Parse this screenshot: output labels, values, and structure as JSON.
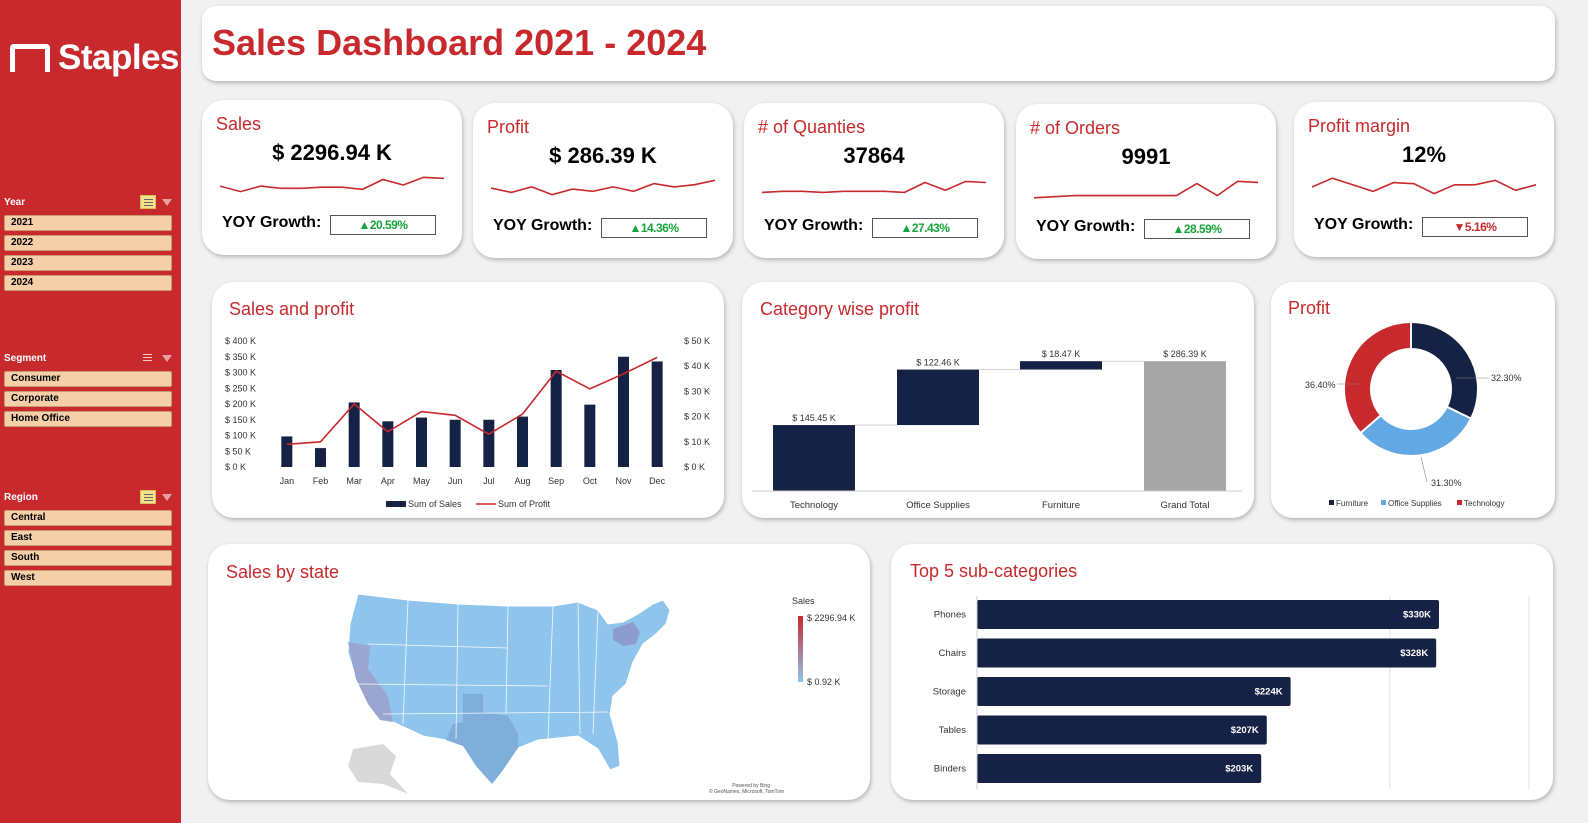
{
  "brand": {
    "name": "Staples"
  },
  "dashboard": {
    "title": "Sales Dashboard 2021 - 2024"
  },
  "slicers": {
    "year": {
      "label": "Year",
      "items": [
        "2021",
        "2022",
        "2023",
        "2024"
      ]
    },
    "segment": {
      "label": "Segment",
      "items": [
        "Consumer",
        "Corporate",
        "Home Office"
      ]
    },
    "region": {
      "label": "Region",
      "items": [
        "Central",
        "East",
        "South",
        "West"
      ]
    }
  },
  "kpis": [
    {
      "title": "Sales",
      "value": "$ 2296.94 K",
      "yoy_label": "YOY Growth:",
      "growth": "▲20.59%",
      "direction": "up",
      "spark": [
        0.45,
        0.2,
        0.45,
        0.35,
        0.35,
        0.4,
        0.4,
        0.3,
        0.75,
        0.5,
        0.85,
        0.8
      ]
    },
    {
      "title": "Profit",
      "value": "$ 286.39 K",
      "yoy_label": "YOY Growth:",
      "growth": "▲14.36%",
      "direction": "up",
      "spark": [
        0.5,
        0.3,
        0.55,
        0.2,
        0.45,
        0.35,
        0.55,
        0.35,
        0.7,
        0.55,
        0.65,
        0.85
      ]
    },
    {
      "title": "# of Quanties",
      "value": "37864",
      "yoy_label": "YOY Growth:",
      "growth": "▲27.43%",
      "direction": "up",
      "spark": [
        0.3,
        0.35,
        0.35,
        0.3,
        0.35,
        0.35,
        0.35,
        0.3,
        0.75,
        0.4,
        0.8,
        0.75
      ]
    },
    {
      "title": "# of Orders",
      "value": "9991",
      "yoy_label": "YOY Growth:",
      "growth": "▲28.59%",
      "direction": "up",
      "spark": [
        0.1,
        0.15,
        0.2,
        0.2,
        0.2,
        0.2,
        0.2,
        0.2,
        0.75,
        0.2,
        0.85,
        0.8
      ]
    },
    {
      "title": "Profit margin",
      "value": "12%",
      "yoy_label": "YOY Growth:",
      "growth": "▼5.16%",
      "direction": "down",
      "spark": [
        0.5,
        0.9,
        0.6,
        0.3,
        0.7,
        0.65,
        0.2,
        0.6,
        0.6,
        0.8,
        0.35,
        0.6
      ]
    }
  ],
  "panels": {
    "sales_profit": "Sales and profit",
    "category_profit": "Category wise profit",
    "profit_donut": "Profit",
    "sales_state": "Sales by state",
    "top5": "Top 5 sub-categories"
  },
  "map": {
    "legend_title": "Sales",
    "legend_max": "$ 2296.94 K",
    "legend_min": "$ 0.92 K",
    "credit1": "Powered by Bing",
    "credit2": "© GeoNames, Microsoft, TomTom",
    "colors": {
      "low": "#8fc4ec",
      "high": "#c8292c"
    }
  },
  "colors": {
    "navy": "#162245",
    "red": "#c8292c",
    "grey": "#a6a6a6",
    "light_blue": "#62a8e5",
    "green": "#14a53a"
  },
  "chart_data": [
    {
      "type": "bar",
      "title": "Sales and profit",
      "categories": [
        "Jan",
        "Feb",
        "Mar",
        "Apr",
        "May",
        "Jun",
        "Jul",
        "Aug",
        "Sep",
        "Oct",
        "Nov",
        "Dec"
      ],
      "series": [
        {
          "name": "Sum of Sales",
          "type": "bar",
          "axis": "left",
          "values": [
            97,
            60,
            205,
            145,
            157,
            150,
            150,
            160,
            308,
            198,
            350,
            335
          ]
        },
        {
          "name": "Sum of Profit",
          "type": "line",
          "axis": "right",
          "values": [
            9,
            10,
            25,
            14,
            22,
            20.5,
            13,
            21,
            38,
            31,
            37,
            43.5
          ]
        }
      ],
      "y_left": {
        "ticks": [
          "$ 0 K",
          "$ 50 K",
          "$ 100 K",
          "$ 150 K",
          "$ 200 K",
          "$ 250 K",
          "$ 300 K",
          "$ 350 K",
          "$ 400 K"
        ],
        "ylim": [
          0,
          400
        ]
      },
      "y_right": {
        "ticks": [
          "$ 0 K",
          "$ 10 K",
          "$ 20 K",
          "$ 30 K",
          "$ 40 K",
          "$ 50 K"
        ],
        "ylim": [
          0,
          50
        ]
      },
      "legend": "bottom"
    },
    {
      "type": "bar",
      "subtype": "waterfall",
      "title": "Category wise profit",
      "categories": [
        "Technology",
        "Office Supplies",
        "Furniture",
        "Grand Total"
      ],
      "values": [
        145.45,
        122.46,
        18.47,
        286.39
      ],
      "labels": [
        "$ 145.45 K",
        "$ 122.46 K",
        "$ 18.47 K",
        "$ 286.39 K"
      ],
      "ylim": [
        0,
        300
      ]
    },
    {
      "type": "pie",
      "subtype": "donut",
      "title": "Profit",
      "categories": [
        "Furniture",
        "Office Supplies",
        "Technology"
      ],
      "values": [
        32.3,
        31.3,
        36.4
      ],
      "labels": [
        "32.30%",
        "31.30%",
        "36.40%"
      ],
      "colors": [
        "#162245",
        "#62a8e5",
        "#c8292c"
      ],
      "legend": "bottom"
    },
    {
      "type": "bar",
      "orientation": "horizontal",
      "title": "Top 5 sub-categories",
      "categories": [
        "Phones",
        "Chairs",
        "Storage",
        "Tables",
        "Binders"
      ],
      "values": [
        330,
        328,
        224,
        207,
        203
      ],
      "labels": [
        "$330K",
        "$328K",
        "$224K",
        "$207K",
        "$203K"
      ],
      "xlim": [
        0,
        500
      ]
    }
  ]
}
